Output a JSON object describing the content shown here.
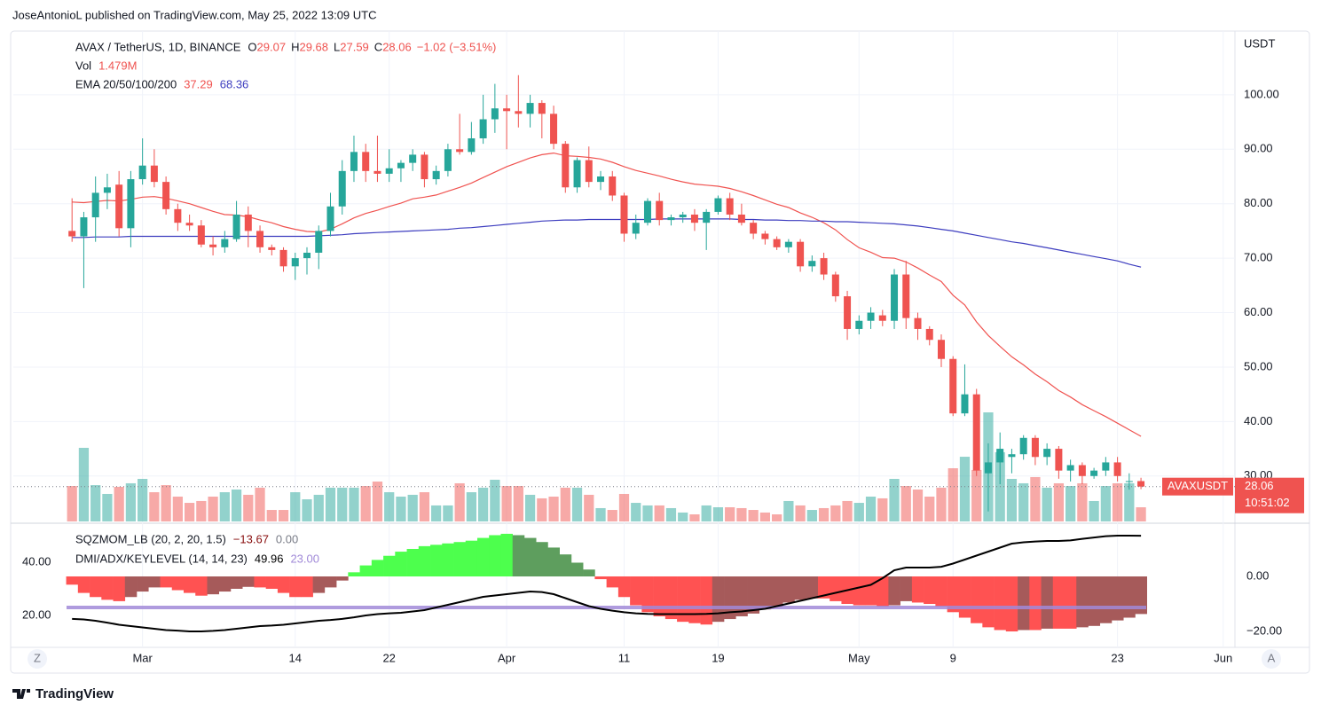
{
  "header": {
    "text": "JoseAntonioL published on TradingView.com, May 25, 2022 13:09 UTC"
  },
  "footer": {
    "brand": "TradingView"
  },
  "controls": {
    "left": "Z",
    "right": "A"
  },
  "chart_data": [
    {
      "type": "candlestick",
      "title": "AVAX / TetherUS, 1D, BINANCE",
      "ohlc_letters": [
        "O",
        "H",
        "L",
        "C"
      ],
      "change_label": "−1.02 (−3.51%)",
      "currency": "USDT",
      "symbol_tag": "AVAXUSDT",
      "countdown": "10:51:02",
      "up_color": "#26a69a",
      "down_color": "#ef5350",
      "x": [
        "02-23",
        "02-24",
        "02-25",
        "02-26",
        "02-27",
        "02-28",
        "03-01",
        "03-02",
        "03-03",
        "03-04",
        "03-05",
        "03-06",
        "03-07",
        "03-08",
        "03-09",
        "03-10",
        "03-11",
        "03-12",
        "03-13",
        "03-14",
        "03-15",
        "03-16",
        "03-17",
        "03-18",
        "03-19",
        "03-20",
        "03-21",
        "03-22",
        "03-23",
        "03-24",
        "03-25",
        "03-26",
        "03-27",
        "03-28",
        "03-29",
        "03-30",
        "03-31",
        "04-01",
        "04-02",
        "04-03",
        "04-04",
        "04-05",
        "04-06",
        "04-07",
        "04-08",
        "04-09",
        "04-10",
        "04-11",
        "04-12",
        "04-13",
        "04-14",
        "04-15",
        "04-16",
        "04-17",
        "04-18",
        "04-19",
        "04-20",
        "04-21",
        "04-22",
        "04-23",
        "04-24",
        "04-25",
        "04-26",
        "04-27",
        "04-28",
        "04-29",
        "04-30",
        "05-01",
        "05-02",
        "05-03",
        "05-04",
        "05-05",
        "05-06",
        "05-07",
        "05-08",
        "05-09",
        "05-10",
        "05-11",
        "05-12",
        "05-13",
        "05-14",
        "05-15",
        "05-16",
        "05-17",
        "05-18",
        "05-19",
        "05-20",
        "05-21",
        "05-22",
        "05-23",
        "05-24",
        "05-25"
      ],
      "open": [
        75,
        74,
        77.5,
        82,
        83.5,
        75.5,
        84.5,
        87,
        84,
        79,
        76.5,
        76,
        72.5,
        72,
        73.5,
        78,
        75,
        72,
        71.5,
        68.5,
        70,
        71,
        75,
        79.5,
        86,
        89.5,
        86,
        85.5,
        86.5,
        87.5,
        89,
        84.5,
        86,
        90,
        89.5,
        92,
        95.5,
        97.5,
        97,
        96.5,
        98.5,
        96.5,
        91,
        83,
        88,
        84,
        85,
        81.5,
        74.5,
        76.5,
        80.5,
        77,
        77.5,
        78,
        76.5,
        78.5,
        81,
        78,
        76.5,
        74.5,
        73.5,
        72,
        73,
        68.5,
        70,
        67,
        63,
        57,
        58.5,
        59.5,
        58.5,
        67,
        59,
        57,
        55,
        51.5,
        41.5,
        45,
        30.5,
        32.5,
        33.5,
        34,
        37,
        33.5,
        35,
        31,
        32,
        30,
        31,
        32.5,
        29,
        29.07
      ],
      "high": [
        81,
        78.5,
        85,
        85.5,
        86,
        86,
        92,
        90,
        85,
        80,
        78,
        77,
        74,
        75,
        80.5,
        79.5,
        76,
        72.5,
        72,
        71,
        72,
        76,
        82,
        88,
        92.5,
        91,
        92.5,
        90,
        88,
        90,
        89.5,
        87,
        91,
        96.5,
        95,
        100,
        102,
        100,
        103.6,
        100,
        99,
        98,
        91.5,
        88.5,
        90.5,
        86,
        86,
        82,
        78,
        81,
        82,
        78,
        78.5,
        79,
        79,
        81.5,
        82,
        80,
        77,
        75,
        74,
        73.5,
        73.5,
        70.5,
        71,
        67.5,
        64,
        59.5,
        61,
        60.5,
        68,
        69.5,
        60,
        57.5,
        56,
        52,
        50.5,
        46,
        36,
        38,
        35,
        37.5,
        37.5,
        36,
        35.5,
        33,
        32.5,
        31.5,
        33.5,
        33.5,
        30.5,
        29.68
      ],
      "low": [
        73,
        64.5,
        73,
        79,
        74,
        72,
        83.5,
        83,
        78,
        75,
        75,
        72,
        70.5,
        71,
        73,
        72,
        71,
        70.5,
        67.5,
        66,
        67,
        68,
        74,
        78,
        84,
        84,
        84,
        84,
        84,
        86,
        83,
        83.5,
        85,
        89,
        89,
        91,
        93,
        90,
        94,
        94,
        92,
        90,
        82,
        82,
        83,
        82.5,
        80.5,
        73,
        73.5,
        76,
        76,
        76,
        76.5,
        75,
        71.5,
        78,
        77,
        76,
        73.5,
        72.5,
        71.5,
        71,
        67.5,
        67.5,
        66,
        62,
        55,
        56,
        57,
        57.5,
        57,
        57,
        55,
        54,
        50,
        41,
        41,
        30,
        23.5,
        28.5,
        30.5,
        33,
        32,
        32,
        29.5,
        29,
        28.5,
        29.5,
        30,
        29,
        27.5,
        27.59
      ],
      "close": [
        74,
        77.5,
        82,
        83,
        75.5,
        84.5,
        87,
        84,
        79,
        76.5,
        76,
        72.5,
        72,
        73.5,
        78,
        75,
        72,
        71.5,
        68.5,
        70,
        71,
        75,
        79.5,
        86,
        89.5,
        86,
        85.5,
        86.5,
        87.5,
        89,
        84.5,
        86,
        90,
        89.5,
        92,
        95.5,
        97.5,
        97,
        96.5,
        98.5,
        96.5,
        91,
        83,
        88,
        84,
        85,
        81.5,
        74.5,
        76.5,
        80.5,
        77,
        77.5,
        78,
        76.5,
        78.5,
        81,
        78,
        76.5,
        74.5,
        73.5,
        72,
        73,
        68.5,
        69.5,
        67,
        63,
        57,
        58.5,
        60,
        58.5,
        67,
        59,
        57,
        55,
        51.5,
        41.5,
        45,
        31,
        32.5,
        35,
        34,
        37,
        33.5,
        35,
        31,
        32,
        30,
        31,
        32.5,
        30,
        29.07,
        28.06
      ],
      "volume_title": "Vol",
      "volume_label": "1.479M",
      "volume": [
        3.7,
        7.68,
        3.79,
        2.87,
        3.61,
        3.98,
        4.44,
        3.05,
        3.79,
        2.59,
        1.94,
        2.13,
        2.59,
        3.05,
        3.33,
        2.78,
        3.52,
        1.2,
        1.2,
        3.05,
        2.31,
        2.78,
        3.52,
        3.52,
        3.52,
        3.7,
        4.16,
        3.05,
        2.59,
        2.78,
        3.05,
        1.67,
        1.67,
        3.98,
        3.05,
        3.52,
        4.35,
        3.7,
        3.7,
        2.78,
        2.41,
        2.59,
        3.52,
        3.52,
        2.78,
        1.39,
        1.2,
        2.87,
        1.94,
        1.67,
        1.67,
        1.39,
        0.93,
        0.74,
        1.67,
        1.48,
        1.48,
        1.39,
        1.2,
        0.93,
        0.74,
        2.13,
        1.67,
        1.2,
        1.39,
        1.67,
        2.13,
        1.94,
        2.59,
        2.41,
        4.44,
        3.7,
        3.33,
        2.59,
        3.52,
        5.55,
        6.75,
        5.37,
        11.38,
        7.22,
        4.44,
        3.98,
        4.63,
        3.52,
        3.98,
        3.7,
        3.98,
        2.13,
        3.7,
        3.98,
        3.98,
        1.479
      ],
      "ema_title": "EMA 20/50/100/200",
      "ema_lines": [
        {
          "color": "#f05350",
          "values": [
            80.3,
            80.2,
            80.4,
            80.6,
            80.5,
            80.8,
            81.2,
            81.3,
            81.0,
            80.5,
            80.0,
            79.3,
            78.6,
            78.0,
            77.9,
            77.6,
            77.0,
            76.5,
            75.8,
            75.3,
            74.9,
            74.8,
            75.3,
            76.3,
            77.4,
            78.2,
            78.8,
            79.5,
            80.1,
            80.9,
            81.2,
            81.6,
            82.3,
            83.0,
            83.8,
            84.8,
            85.8,
            86.8,
            87.6,
            88.4,
            89.0,
            89.3,
            88.8,
            88.7,
            88.5,
            88.2,
            87.6,
            86.8,
            86.1,
            85.6,
            85.1,
            84.5,
            84.0,
            83.6,
            83.4,
            83.2,
            82.8,
            82.2,
            81.5,
            80.7,
            79.9,
            79.3,
            78.3,
            77.5,
            76.5,
            75.2,
            73.4,
            71.9,
            71.1,
            70.1,
            70.0,
            69.3,
            68.2,
            66.9,
            65.7,
            63.2,
            61.4,
            58.3,
            55.8,
            53.8,
            51.9,
            50.4,
            48.7,
            47.3,
            45.7,
            44.5,
            43.1,
            42.0,
            40.9,
            39.7,
            38.5,
            37.29
          ]
        },
        {
          "color": "#3d3dbf",
          "values": [
            73.8,
            73.8,
            73.9,
            73.9,
            73.9,
            74.0,
            74.0,
            74.0,
            74.0,
            74.0,
            74.0,
            74.0,
            74.0,
            74.0,
            74.0,
            74.0,
            74.0,
            74.0,
            74.0,
            74.0,
            74.0,
            74.1,
            74.2,
            74.3,
            74.5,
            74.6,
            74.7,
            74.8,
            74.9,
            75.0,
            75.1,
            75.2,
            75.3,
            75.5,
            75.6,
            75.8,
            76.0,
            76.2,
            76.4,
            76.6,
            76.8,
            76.9,
            77.0,
            77.0,
            77.1,
            77.1,
            77.1,
            77.1,
            77.1,
            77.1,
            77.2,
            77.2,
            77.2,
            77.2,
            77.2,
            77.2,
            77.2,
            77.1,
            77.1,
            77.0,
            77.0,
            76.9,
            76.9,
            76.8,
            76.8,
            76.7,
            76.7,
            76.6,
            76.5,
            76.4,
            76.3,
            76.1,
            75.9,
            75.6,
            75.3,
            75.0,
            74.6,
            74.2,
            73.8,
            73.4,
            73.0,
            72.7,
            72.3,
            71.9,
            71.5,
            71.1,
            70.7,
            70.3,
            69.9,
            69.5,
            68.9,
            68.36
          ]
        }
      ],
      "xlim": [
        "02-18",
        "06-02"
      ],
      "xticks": [
        {
          "value": "03-01",
          "label": "Mar"
        },
        {
          "value": "03-14",
          "label": "14"
        },
        {
          "value": "03-22",
          "label": "22"
        },
        {
          "value": "04-01",
          "label": "Apr"
        },
        {
          "value": "04-11",
          "label": "11"
        },
        {
          "value": "04-19",
          "label": "19"
        },
        {
          "value": "05-01",
          "label": "May"
        },
        {
          "value": "05-09",
          "label": "9"
        },
        {
          "value": "05-23",
          "label": "23"
        },
        {
          "value": "06-01",
          "label": "Jun"
        }
      ],
      "ylim": [
        21.66,
        111.7
      ],
      "yticks": [
        {
          "value": 30,
          "label": "30.00"
        },
        {
          "value": 40,
          "label": "40.00"
        },
        {
          "value": 50,
          "label": "50.00"
        },
        {
          "value": 60,
          "label": "60.00"
        },
        {
          "value": 70,
          "label": "70.00"
        },
        {
          "value": 80,
          "label": "80.00"
        },
        {
          "value": 90,
          "label": "90.00"
        },
        {
          "value": 100,
          "label": "100.00"
        }
      ],
      "grid": true
    },
    {
      "type": "indicator",
      "momentum": {
        "title": "SQZMOM_LB (20, 2, 20, 1.5)",
        "values": [
          -3,
          -6,
          -7.5,
          -8.5,
          -9,
          -7.5,
          -5.5,
          -4,
          -4,
          -5,
          -6,
          -7,
          -6.5,
          -5.5,
          -4.5,
          -3.8,
          -4,
          -4.5,
          -6,
          -7.5,
          -7.5,
          -6,
          -4,
          -1.5,
          1.5,
          4,
          6,
          7.5,
          9,
          10,
          11,
          11.5,
          12,
          12.5,
          13,
          14,
          15,
          15.5,
          15,
          14,
          12.5,
          10.5,
          8,
          5,
          2.5,
          -1,
          -4,
          -7.5,
          -10.5,
          -13,
          -14.5,
          -15.5,
          -16.5,
          -17,
          -17.5,
          -16.5,
          -15.5,
          -14.5,
          -13.5,
          -12,
          -11,
          -9.5,
          -8.5,
          -8,
          -8,
          -9,
          -10,
          -10.5,
          -10.5,
          -11,
          -10.5,
          -9,
          -9.5,
          -10,
          -11,
          -13,
          -15,
          -17,
          -18.5,
          -19.5,
          -20,
          -19.5,
          -19.5,
          -19,
          -19,
          -19,
          -18.5,
          -18,
          -17,
          -16,
          -15,
          -13.67
        ],
        "last_value_label": "−13.67",
        "signal": {
          "value": 0,
          "label": "0.00"
        },
        "colors": {
          "up_rising": "#4dff4d",
          "up_falling": "#5e9e5e",
          "down_falling": "#ff5252",
          "down_rising": "#a65a5a"
        },
        "ylim": [
          -25.8,
          18.7
        ],
        "yticks": [
          {
            "value": 0,
            "label": "0.00"
          },
          {
            "value": -20,
            "label": "−20.00"
          }
        ]
      },
      "dmi": {
        "title": "DMI/ADX/KEYLEVEL (14, 14, 23)",
        "adx": [
          18.7,
          18.5,
          18.0,
          17.3,
          16.5,
          16.0,
          15.5,
          15.0,
          14.5,
          14.3,
          14.0,
          14.0,
          14.2,
          14.5,
          15.0,
          15.5,
          16.0,
          16.2,
          16.5,
          17.0,
          17.5,
          18.0,
          18.3,
          18.7,
          19.3,
          20.0,
          20.5,
          20.8,
          21.0,
          21.5,
          22.0,
          23.0,
          24.0,
          25.0,
          26.0,
          27.0,
          27.5,
          28.0,
          28.5,
          29.0,
          28.8,
          28.0,
          26.5,
          25.0,
          23.5,
          22.5,
          21.8,
          21.2,
          20.8,
          20.6,
          20.5,
          20.5,
          20.5,
          20.5,
          20.6,
          20.8,
          21.2,
          21.5,
          22.0,
          22.5,
          23.5,
          24.5,
          25.5,
          26.5,
          27.5,
          28.5,
          29.5,
          30.5,
          31.5,
          34.0,
          37.0,
          38.0,
          38.0,
          38.0,
          38.3,
          39.5,
          41.0,
          42.5,
          44.0,
          45.5,
          47.0,
          47.5,
          47.8,
          48.0,
          48.0,
          48.2,
          48.8,
          49.3,
          49.8,
          50.0,
          50.0,
          49.96
        ],
        "adx_color": "#000000",
        "key_level": {
          "value": 23,
          "label": "23.00"
        },
        "key_level_color": "#a18ad8",
        "ylim": [
          8,
          54
        ],
        "yticks": [
          {
            "value": 20,
            "label": "20.00"
          },
          {
            "value": 40,
            "label": "40.00"
          }
        ]
      }
    }
  ]
}
